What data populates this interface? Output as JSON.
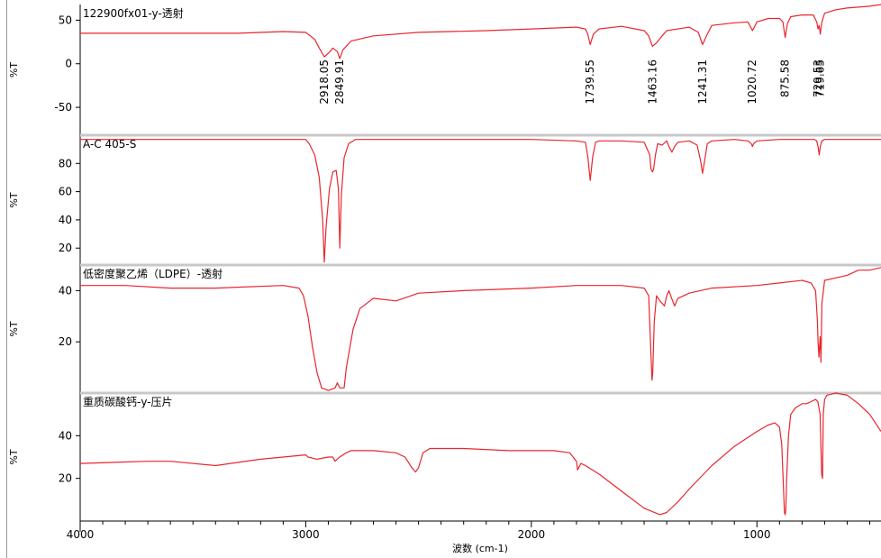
{
  "chart_data": {
    "type": "line",
    "xlabel": "波数 (cm-1)",
    "xlim": [
      4000,
      450
    ],
    "x_ticks": [
      4000,
      3000,
      2000,
      1000
    ],
    "x_tick_labels": [
      "4000",
      "3000",
      "2000",
      "1000"
    ],
    "series_color": "#e8262e",
    "panels": [
      {
        "name": "122900fx01-y-透射",
        "ylabel": "%T",
        "ylim": [
          -82,
          68
        ],
        "y_ticks": [
          50,
          0,
          -50
        ],
        "y_tick_labels": [
          "50",
          "0",
          "-50"
        ],
        "peak_labels": [
          {
            "x": 2918.05,
            "text": "2918.05"
          },
          {
            "x": 2849.91,
            "text": "2849.91"
          },
          {
            "x": 1739.55,
            "text": "1739.55"
          },
          {
            "x": 1463.16,
            "text": "1463.16"
          },
          {
            "x": 1241.31,
            "text": "1241.31"
          },
          {
            "x": 1020.72,
            "text": "1020.72"
          },
          {
            "x": 875.58,
            "text": "875.58"
          },
          {
            "x": 729.53,
            "text": "729.53"
          },
          {
            "x": 719.65,
            "text": "719.65"
          }
        ],
        "x": [
          4000,
          3600,
          3300,
          3100,
          3000,
          2960,
          2940,
          2918,
          2900,
          2880,
          2860,
          2849,
          2835,
          2800,
          2700,
          2500,
          2200,
          2000,
          1800,
          1760,
          1750,
          1739,
          1725,
          1700,
          1600,
          1500,
          1480,
          1463,
          1445,
          1420,
          1400,
          1300,
          1260,
          1241,
          1220,
          1200,
          1100,
          1040,
          1020,
          1000,
          950,
          900,
          885,
          875,
          865,
          850,
          800,
          750,
          735,
          729,
          724,
          719,
          712,
          700,
          650,
          600,
          500,
          450
        ],
        "y": [
          35,
          35,
          35,
          37,
          36,
          28,
          18,
          8,
          12,
          18,
          14,
          6,
          16,
          26,
          32,
          36,
          38,
          40,
          42,
          40,
          34,
          22,
          34,
          40,
          43,
          38,
          32,
          20,
          24,
          32,
          38,
          42,
          36,
          22,
          34,
          44,
          47,
          48,
          38,
          48,
          52,
          52,
          48,
          30,
          46,
          54,
          56,
          56,
          48,
          40,
          44,
          34,
          48,
          58,
          62,
          64,
          66,
          68
        ]
      },
      {
        "name": "A-C 405-S",
        "ylabel": "%T",
        "ylim": [
          8,
          100
        ],
        "y_ticks": [
          80,
          60,
          40,
          20
        ],
        "y_tick_labels": [
          "80",
          "60",
          "40",
          "20"
        ],
        "x": [
          4000,
          3200,
          3000,
          2985,
          2960,
          2940,
          2925,
          2918,
          2910,
          2895,
          2880,
          2865,
          2855,
          2849,
          2842,
          2830,
          2810,
          2780,
          2700,
          2000,
          1800,
          1760,
          1750,
          1739,
          1728,
          1715,
          1700,
          1600,
          1500,
          1475,
          1470,
          1463,
          1458,
          1450,
          1440,
          1420,
          1400,
          1390,
          1377,
          1365,
          1350,
          1300,
          1265,
          1250,
          1241,
          1232,
          1220,
          1200,
          1100,
          1040,
          1025,
          1020,
          1015,
          1000,
          900,
          800,
          745,
          735,
          729,
          724,
          719,
          712,
          700,
          650,
          600,
          500,
          450
        ],
        "y": [
          97,
          97,
          97,
          94,
          86,
          70,
          40,
          10,
          35,
          62,
          74,
          75,
          62,
          20,
          58,
          84,
          94,
          97,
          97,
          97,
          96,
          95,
          85,
          68,
          85,
          95,
          96,
          96,
          95,
          86,
          76,
          74,
          76,
          86,
          94,
          93,
          96,
          92,
          88,
          92,
          95,
          96,
          93,
          82,
          73,
          82,
          94,
          96,
          97,
          96,
          94,
          92,
          94,
          96,
          97,
          97,
          97,
          96,
          92,
          86,
          92,
          96,
          97,
          97,
          97,
          97,
          97
        ]
      },
      {
        "name": "低密度聚乙烯（LDPE）-透射",
        "ylabel": "%T",
        "ylim": [
          0,
          50
        ],
        "y_ticks": [
          40,
          20
        ],
        "y_tick_labels": [
          "40",
          "20"
        ],
        "x": [
          4000,
          3800,
          3600,
          3400,
          3100,
          3030,
          3010,
          2990,
          2970,
          2950,
          2930,
          2900,
          2870,
          2860,
          2849,
          2830,
          2820,
          2790,
          2760,
          2700,
          2600,
          2500,
          2300,
          2000,
          1800,
          1600,
          1500,
          1480,
          1472,
          1465,
          1462,
          1455,
          1445,
          1430,
          1410,
          1400,
          1390,
          1378,
          1365,
          1350,
          1300,
          1200,
          1000,
          900,
          800,
          760,
          740,
          732,
          729,
          725,
          720,
          716,
          712,
          700,
          650,
          600,
          550,
          500,
          450
        ],
        "y": [
          42,
          42,
          41,
          41,
          42,
          41,
          38,
          30,
          18,
          8,
          2,
          1,
          2,
          4,
          2,
          2,
          10,
          25,
          33,
          37,
          36,
          39,
          40,
          41,
          42,
          42,
          41,
          38,
          20,
          5,
          8,
          28,
          38,
          36,
          34,
          38,
          40,
          37,
          34,
          37,
          39,
          41,
          42,
          43,
          44,
          43,
          40,
          28,
          20,
          14,
          22,
          12,
          35,
          44,
          45,
          46,
          48,
          48,
          49
        ]
      },
      {
        "name": "重质碳酸钙-y-压片",
        "ylabel": "%T",
        "ylim": [
          0,
          60
        ],
        "y_ticks": [
          40,
          20
        ],
        "y_tick_labels": [
          "40",
          "20"
        ],
        "x": [
          4000,
          3700,
          3600,
          3400,
          3200,
          3000,
          2990,
          2950,
          2900,
          2880,
          2870,
          2850,
          2820,
          2800,
          2700,
          2600,
          2560,
          2530,
          2513,
          2500,
          2480,
          2450,
          2300,
          2100,
          1900,
          1830,
          1800,
          1795,
          1780,
          1760,
          1700,
          1600,
          1500,
          1430,
          1400,
          1350,
          1300,
          1200,
          1100,
          1000,
          950,
          920,
          900,
          890,
          882,
          878,
          875,
          872,
          868,
          860,
          850,
          830,
          800,
          780,
          760,
          740,
          730,
          720,
          713,
          709,
          706,
          700,
          690,
          650,
          600,
          550,
          500,
          450
        ],
        "y": [
          27,
          28,
          28,
          26,
          29,
          31,
          30,
          29,
          30,
          30,
          28,
          30,
          32,
          33,
          33,
          32,
          30,
          25,
          23,
          25,
          32,
          34,
          34,
          33,
          33,
          32,
          28,
          24,
          27,
          26,
          22,
          14,
          6,
          3,
          4,
          9,
          15,
          26,
          35,
          42,
          45,
          46,
          44,
          36,
          15,
          4,
          3,
          5,
          20,
          40,
          50,
          53,
          55,
          55,
          56,
          57,
          56,
          50,
          22,
          20,
          50,
          57,
          59,
          60,
          59,
          55,
          50,
          42
        ]
      }
    ]
  }
}
